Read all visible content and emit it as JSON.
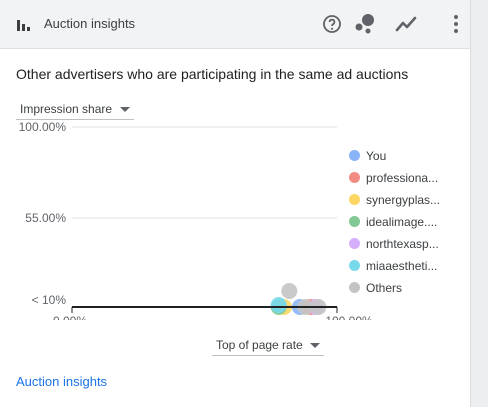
{
  "header": {
    "title": "Auction insights",
    "icons": [
      "bar-chart-icon",
      "help-icon",
      "bubble-chart-icon",
      "line-chart-icon",
      "more-vert-icon"
    ]
  },
  "subtitle": "Other advertisers who are participating in the same ad auctions",
  "y_select": "Impression share",
  "x_select": "Top of page rate",
  "footer_link": "Auction insights",
  "chart_data": {
    "type": "scatter",
    "y_ticks": [
      "100.00%",
      "55.00%",
      "< 10%"
    ],
    "x_ticks": [
      "0.00%",
      "100.00%"
    ],
    "xlim": [
      0,
      100
    ],
    "ylim": [
      10,
      100
    ],
    "legend_position": "right",
    "series": [
      {
        "name": "You",
        "color": "#8ab4f8",
        "points": [
          [
            86,
            10
          ]
        ]
      },
      {
        "name": "professiona...",
        "color": "#f28b82",
        "points": [
          [
            90,
            10
          ]
        ]
      },
      {
        "name": "synergyplas...",
        "color": "#fdd663",
        "points": [
          [
            80,
            10
          ]
        ]
      },
      {
        "name": "idealimage....",
        "color": "#81c995",
        "points": [
          [
            78,
            10
          ]
        ]
      },
      {
        "name": "northtexasp...",
        "color": "#d7aefb",
        "points": [
          [
            92,
            10
          ]
        ]
      },
      {
        "name": "miaaestheti...",
        "color": "#78d9ec",
        "points": [
          [
            78,
            11
          ]
        ]
      },
      {
        "name": "Others",
        "color": "#c4c4c4",
        "points": [
          [
            82,
            18
          ],
          [
            93,
            10
          ],
          [
            88,
            10
          ]
        ]
      }
    ]
  }
}
